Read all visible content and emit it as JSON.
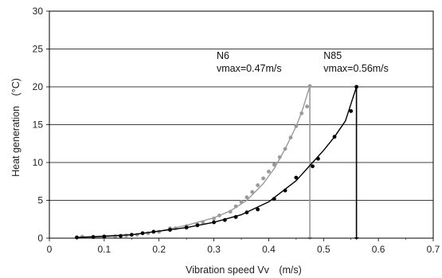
{
  "chart_data": {
    "type": "line",
    "title": "",
    "xlabel": "Vibration speed Vv　(m/s)",
    "ylabel": "Heat generation　(°C)",
    "xlim": [
      0,
      0.7
    ],
    "ylim": [
      0,
      30
    ],
    "x_ticks": [
      "0",
      "0.1",
      "0.2",
      "0.3",
      "0.4",
      "0.5",
      "0.6",
      "0.7"
    ],
    "y_ticks": [
      "0",
      "5",
      "10",
      "15",
      "20",
      "25",
      "30"
    ],
    "grid": "horizontal",
    "legend": "none",
    "series": [
      {
        "name": "N6",
        "color": "#9a9a9a",
        "points": [
          [
            0.06,
            0.2
          ],
          [
            0.08,
            0.15
          ],
          [
            0.1,
            0.25
          ],
          [
            0.12,
            0.25
          ],
          [
            0.14,
            0.35
          ],
          [
            0.16,
            0.45
          ],
          [
            0.18,
            0.65
          ],
          [
            0.2,
            0.85
          ],
          [
            0.22,
            1.3
          ],
          [
            0.23,
            1.3
          ],
          [
            0.25,
            1.6
          ],
          [
            0.27,
            1.8
          ],
          [
            0.28,
            2.1
          ],
          [
            0.3,
            2.6
          ],
          [
            0.31,
            3.0
          ],
          [
            0.33,
            3.5
          ],
          [
            0.34,
            4.2
          ],
          [
            0.35,
            4.8
          ],
          [
            0.36,
            5.4
          ],
          [
            0.37,
            6.1
          ],
          [
            0.38,
            7.0
          ],
          [
            0.39,
            7.9
          ],
          [
            0.4,
            8.8
          ],
          [
            0.41,
            9.7
          ],
          [
            0.42,
            10.7
          ],
          [
            0.43,
            11.8
          ],
          [
            0.44,
            13.3
          ],
          [
            0.45,
            14.8
          ],
          [
            0.46,
            16.5
          ],
          [
            0.47,
            17.4
          ],
          [
            0.475,
            20.1
          ]
        ],
        "curve": [
          [
            0.05,
            0.1
          ],
          [
            0.1,
            0.15
          ],
          [
            0.15,
            0.45
          ],
          [
            0.2,
            0.95
          ],
          [
            0.25,
            1.7
          ],
          [
            0.3,
            2.7
          ],
          [
            0.33,
            3.6
          ],
          [
            0.36,
            5.0
          ],
          [
            0.39,
            7.2
          ],
          [
            0.41,
            9.2
          ],
          [
            0.43,
            11.8
          ],
          [
            0.45,
            14.8
          ],
          [
            0.46,
            16.6
          ],
          [
            0.475,
            20.1
          ]
        ],
        "vmax": 0.47,
        "annotation": [
          "N6",
          "vmax=0.47m/s"
        ]
      },
      {
        "name": "N85",
        "color": "#000000",
        "points": [
          [
            0.05,
            0.1
          ],
          [
            0.08,
            0.15
          ],
          [
            0.1,
            0.2
          ],
          [
            0.13,
            0.3
          ],
          [
            0.15,
            0.45
          ],
          [
            0.17,
            0.65
          ],
          [
            0.19,
            0.85
          ],
          [
            0.22,
            1.1
          ],
          [
            0.25,
            1.4
          ],
          [
            0.27,
            1.7
          ],
          [
            0.3,
            2.1
          ],
          [
            0.32,
            2.4
          ],
          [
            0.34,
            2.8
          ],
          [
            0.36,
            3.4
          ],
          [
            0.38,
            3.8
          ],
          [
            0.41,
            5.2
          ],
          [
            0.43,
            6.3
          ],
          [
            0.45,
            8.0
          ],
          [
            0.48,
            9.5
          ],
          [
            0.49,
            10.5
          ],
          [
            0.52,
            13.4
          ],
          [
            0.55,
            16.8
          ],
          [
            0.56,
            20.0
          ]
        ],
        "curve": [
          [
            0.05,
            0.1
          ],
          [
            0.15,
            0.45
          ],
          [
            0.25,
            1.4
          ],
          [
            0.3,
            2.1
          ],
          [
            0.35,
            3.1
          ],
          [
            0.4,
            4.8
          ],
          [
            0.45,
            7.6
          ],
          [
            0.48,
            10.0
          ],
          [
            0.5,
            11.6
          ],
          [
            0.52,
            13.4
          ],
          [
            0.54,
            15.5
          ],
          [
            0.56,
            20.0
          ]
        ],
        "vmax": 0.56,
        "annotation": [
          "N85",
          "vmax=0.56m/s"
        ]
      }
    ]
  }
}
